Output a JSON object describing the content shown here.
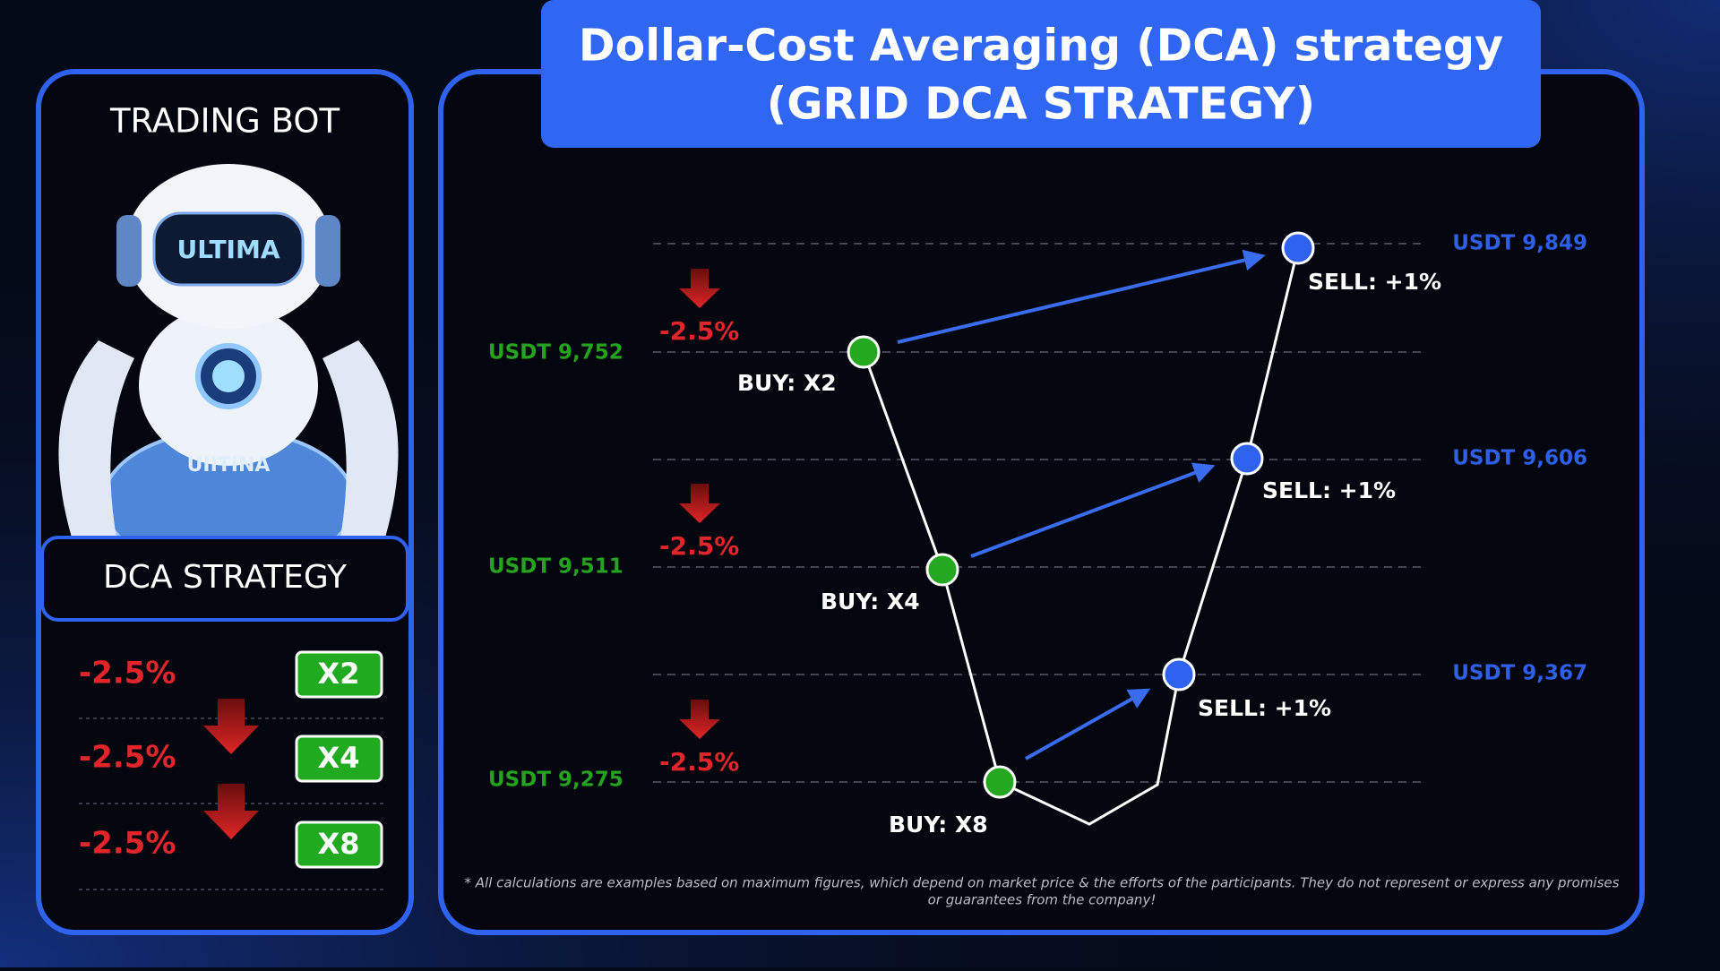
{
  "title": [
    "Dollar-Cost Averaging (DCA) strategy",
    "(GRID DCA STRATEGY)"
  ],
  "sidebar": {
    "heading": "TRADING BOT",
    "robot_label": "ULTIMA",
    "badge": "UIITINA",
    "strategy": "DCA STRATEGY",
    "rows": [
      {
        "drop": "-2.5%",
        "multiplier": "X2"
      },
      {
        "drop": "-2.5%",
        "multiplier": "X4"
      },
      {
        "drop": "-2.5%",
        "multiplier": "X8"
      }
    ]
  },
  "grid": {
    "buy_levels": [
      {
        "price": "USDT 9,752",
        "drop": "-2.5%",
        "action": "BUY: X2"
      },
      {
        "price": "USDT 9,511",
        "drop": "-2.5%",
        "action": "BUY: X4"
      },
      {
        "price": "USDT 9,275",
        "drop": "-2.5%",
        "action": "BUY: X8"
      }
    ],
    "sell_levels": [
      {
        "price": "USDT 9,849",
        "action": "SELL: +1%"
      },
      {
        "price": "USDT 9,606",
        "action": "SELL: +1%"
      },
      {
        "price": "USDT 9,367",
        "action": "SELL: +1%"
      }
    ]
  },
  "disclaimer": [
    "* All calculations are examples based on maximum figures, which depend on market price & the efforts of the participants. They do not represent or express any promises",
    "or guarantees from the company!"
  ]
}
